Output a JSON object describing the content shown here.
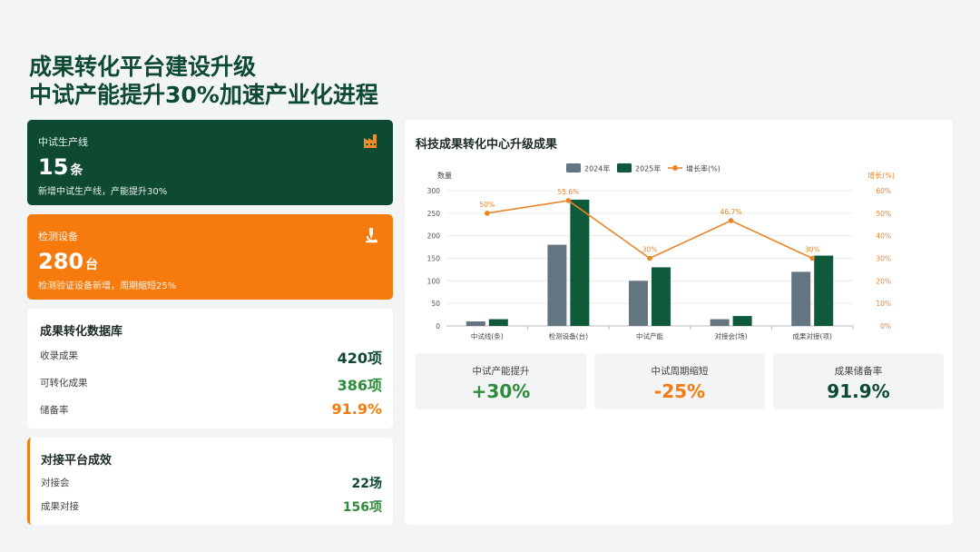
{
  "title": {
    "line1": "成果转化平台建设升级",
    "line2": "中试产能提升30%加速产业化进程"
  },
  "kpi_pilot": {
    "label": "中试生产线",
    "value": "15",
    "unit": "条",
    "desc": "新增中试生产线，产能提升30%",
    "icon": "factory-icon"
  },
  "kpi_equipment": {
    "label": "检测设备",
    "value": "280",
    "unit": "台",
    "desc": "检测验证设备新增，周期缩短25%",
    "icon": "microscope-icon"
  },
  "database": {
    "title": "成果转化数据库",
    "rows": [
      {
        "label": "收录成果",
        "value": "420项"
      },
      {
        "label": "可转化成果",
        "value": "386项"
      },
      {
        "label": "储备率",
        "value": "91.9%"
      }
    ]
  },
  "platform": {
    "title": "对接平台成效",
    "rows": [
      {
        "label": "对接会",
        "value": "22场"
      },
      {
        "label": "成果对接",
        "value": "156项"
      }
    ]
  },
  "chart_title": "科技成果转化中心升级成果",
  "chart_data": {
    "type": "bar",
    "categories": [
      "中试线(条)",
      "检测设备(台)",
      "中试产能",
      "对接会(场)",
      "成果对接(项)"
    ],
    "series": [
      {
        "name": "2024年",
        "type": "bar",
        "values": [
          10,
          180,
          100,
          15,
          120
        ]
      },
      {
        "name": "2025年",
        "type": "bar",
        "values": [
          15,
          280,
          130,
          22,
          156
        ]
      },
      {
        "name": "增长率(%)",
        "type": "line",
        "axis": "right",
        "values": [
          50,
          55.6,
          30,
          46.7,
          30
        ]
      }
    ],
    "data_labels": [
      "50%",
      "55.6%",
      "30%",
      "46.7%",
      "30%"
    ],
    "ylabel": "数量",
    "y2label": "增长(%)",
    "ylim": [
      0,
      300
    ],
    "y2lim": [
      0,
      60
    ],
    "yticks": [
      "0",
      "50",
      "100",
      "150",
      "200",
      "250",
      "300"
    ],
    "y2ticks": [
      "0%",
      "10%",
      "20%",
      "30%",
      "40%",
      "50%",
      "60%"
    ],
    "grid": true,
    "legend_position": "top-center",
    "colors": {
      "bar2024": "#627580",
      "bar2025": "#0e5a3a",
      "line": "#e98526"
    }
  },
  "stats": [
    {
      "label": "中试产能提升",
      "value": "+30%",
      "color": "#2e8b3c"
    },
    {
      "label": "中试周期缩短",
      "value": "-25%",
      "color": "#f77a0c"
    },
    {
      "label": "成果储备率",
      "value": "91.9%",
      "color": "#0e4a31"
    }
  ]
}
